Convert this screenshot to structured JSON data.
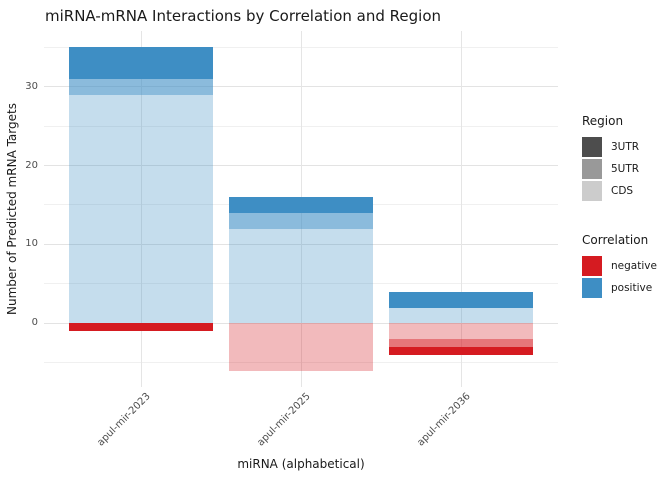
{
  "title": "miRNA-mRNA Interactions by Correlation and Region",
  "axes": {
    "x_title": "miRNA (alphabetical)",
    "y_title": "Number of Predicted mRNA Targets"
  },
  "legend_region": {
    "title": "Region",
    "items": [
      {
        "label": "3UTR",
        "color": "#4d4d4d"
      },
      {
        "label": "5UTR",
        "color": "#999999"
      },
      {
        "label": "CDS",
        "color": "#cccccc"
      }
    ]
  },
  "legend_correlation": {
    "title": "Correlation",
    "items": [
      {
        "label": "negative",
        "color": "#d51b21"
      },
      {
        "label": "positive",
        "color": "#3e8ec4"
      }
    ]
  },
  "chart_data": {
    "type": "bar",
    "stacked": true,
    "diverging": true,
    "title": "miRNA-mRNA Interactions by Correlation and Region",
    "xlabel": "miRNA (alphabetical)",
    "ylabel": "Number of Predicted mRNA Targets",
    "categories": [
      "apul-mir-2023",
      "apul-mir-2025",
      "apul-mir-2036"
    ],
    "y_ticks": [
      0,
      10,
      20,
      30
    ],
    "y_minor_gridlines": [
      -5,
      5,
      15,
      25,
      35
    ],
    "ylim": [
      -8,
      37
    ],
    "grid": true,
    "legend_position": "right",
    "colors": {
      "positive": "#3e8ec4",
      "negative": "#d51b21"
    },
    "region_alpha": {
      "3UTR": 1.0,
      "5UTR": 0.6,
      "CDS": 0.3
    },
    "series": [
      {
        "name": "positive CDS",
        "correlation": "positive",
        "region": "CDS",
        "values": [
          29,
          12,
          2
        ]
      },
      {
        "name": "positive 5UTR",
        "correlation": "positive",
        "region": "5UTR",
        "values": [
          2,
          2,
          0
        ]
      },
      {
        "name": "positive 3UTR",
        "correlation": "positive",
        "region": "3UTR",
        "values": [
          4,
          2,
          2
        ]
      },
      {
        "name": "negative CDS",
        "correlation": "negative",
        "region": "CDS",
        "values": [
          0,
          -6,
          -2
        ]
      },
      {
        "name": "negative 5UTR",
        "correlation": "negative",
        "region": "5UTR",
        "values": [
          0,
          0,
          -1
        ]
      },
      {
        "name": "negative 3UTR",
        "correlation": "negative",
        "region": "3UTR",
        "values": [
          -1,
          0,
          -1
        ]
      }
    ]
  }
}
